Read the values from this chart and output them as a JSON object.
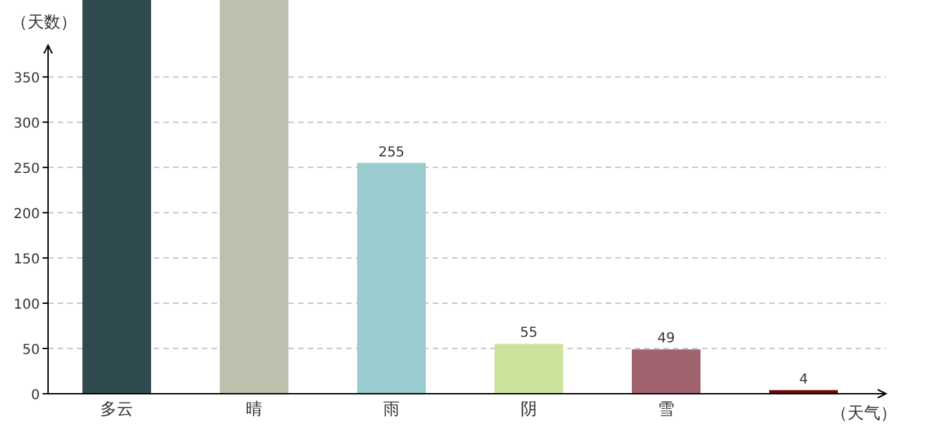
{
  "chart_data": {
    "type": "bar",
    "xlabel": "（天气）",
    "ylabel": "（天数）",
    "categories": [
      "多云",
      "晴",
      "雨",
      "阴",
      "雪",
      null
    ],
    "values": [
      435,
      435,
      255,
      55,
      49,
      4
    ],
    "colors": [
      "#2f4a4f",
      "#bfbfae",
      "#99cbcf",
      "#cce39c",
      "#a0636e",
      "#6b0a0a"
    ],
    "value_labels": [
      null,
      null,
      "255",
      "55",
      "49",
      "4"
    ],
    "ylim": [
      0,
      435
    ],
    "yticks": [
      0,
      50,
      100,
      150,
      200,
      250,
      300,
      350
    ],
    "grid": "y"
  }
}
